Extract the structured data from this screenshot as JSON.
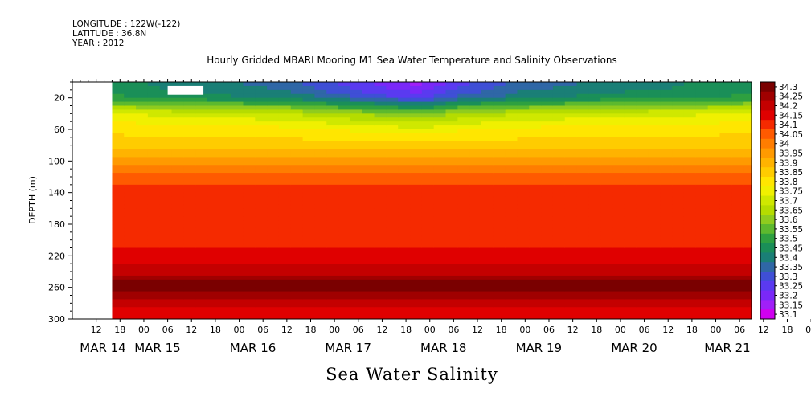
{
  "header": {
    "longitude": "LONGITUDE : 122W(-122)",
    "latitude": "LATITUDE : 36.8N",
    "year": "YEAR : 2012"
  },
  "chart_data": {
    "type": "heatmap",
    "title": "Hourly Gridded MBARI Mooring M1 Sea Water Temperature and Salinity Observations",
    "xlabel": "Sea Water Salinity",
    "ylabel": "DEPTH (m)",
    "ylim": [
      300,
      0
    ],
    "y_ticks": [
      20,
      60,
      100,
      140,
      180,
      220,
      260,
      300
    ],
    "x_hour_ticks": [
      "12",
      "18",
      "00",
      "06",
      "12",
      "18",
      "00",
      "06",
      "12",
      "18",
      "00",
      "06",
      "12",
      "18",
      "00",
      "06",
      "12",
      "18",
      "00",
      "06",
      "12",
      "18",
      "00",
      "06",
      "12",
      "18",
      "00",
      "06",
      "12",
      "18",
      "00",
      "06"
    ],
    "x_date_labels": [
      "MAR 14",
      "MAR 15",
      "MAR 16",
      "MAR 17",
      "MAR 18",
      "MAR 19",
      "MAR 20",
      "MAR 21"
    ],
    "x_range": [
      "2012-03-14 06:00",
      "2012-03-21 09:00"
    ],
    "data_start": "2012-03-14 16:00",
    "missing_data": [
      {
        "x": [
          "2012-03-14 06:00",
          "2012-03-14 16:00"
        ],
        "depth": [
          0,
          300
        ]
      },
      {
        "x": [
          "2012-03-15 06:00",
          "2012-03-15 15:00"
        ],
        "depth": [
          5,
          16
        ]
      }
    ],
    "colorbar": {
      "levels": [
        "34.3",
        "34.25",
        "34.2",
        "34.15",
        "34.1",
        "34.05",
        "34",
        "33.95",
        "33.9",
        "33.85",
        "33.8",
        "33.75",
        "33.7",
        "33.65",
        "33.6",
        "33.55",
        "33.5",
        "33.45",
        "33.4",
        "33.35",
        "33.3",
        "33.25",
        "33.2",
        "33.15",
        "33.1"
      ],
      "colors": [
        "#7a0000",
        "#a00000",
        "#c40000",
        "#e00000",
        "#f52a00",
        "#ff5a00",
        "#ff7d00",
        "#ff9a00",
        "#ffb300",
        "#ffcc00",
        "#ffe600",
        "#f0f000",
        "#cfe800",
        "#b5dc00",
        "#8fcc1e",
        "#5db92e",
        "#2ea040",
        "#1a8f58",
        "#1a7f76",
        "#2f67a6",
        "#3f4fd6",
        "#5a3af0",
        "#7a28f8",
        "#a020f8",
        "#d000f0"
      ]
    },
    "depth_profile": [
      {
        "depth": 5,
        "salinity": 33.4
      },
      {
        "depth": 20,
        "salinity": 33.45
      },
      {
        "depth": 40,
        "salinity": 33.7
      },
      {
        "depth": 60,
        "salinity": 33.8
      },
      {
        "depth": 80,
        "salinity": 33.85
      },
      {
        "depth": 100,
        "salinity": 33.95
      },
      {
        "depth": 120,
        "salinity": 34.05
      },
      {
        "depth": 140,
        "salinity": 34.1
      },
      {
        "depth": 160,
        "salinity": 34.1
      },
      {
        "depth": 200,
        "salinity": 34.1
      },
      {
        "depth": 220,
        "salinity": 34.15
      },
      {
        "depth": 240,
        "salinity": 34.2
      },
      {
        "depth": 255,
        "salinity": 34.3
      },
      {
        "depth": 270,
        "salinity": 34.25
      },
      {
        "depth": 290,
        "salinity": 34.15
      },
      {
        "depth": 300,
        "salinity": 34.15
      }
    ],
    "surface_freshening": [
      {
        "time": "2012-03-14 16:00",
        "salinity": 33.45
      },
      {
        "time": "2012-03-15 12:00",
        "salinity": 33.4
      },
      {
        "time": "2012-03-16 12:00",
        "salinity": 33.35
      },
      {
        "time": "2012-03-17 12:00",
        "salinity": 33.2
      },
      {
        "time": "2012-03-17 21:00",
        "salinity": 33.15
      },
      {
        "time": "2012-03-18 06:00",
        "salinity": 33.25
      },
      {
        "time": "2012-03-19 00:00",
        "salinity": 33.35
      },
      {
        "time": "2012-03-20 00:00",
        "salinity": 33.4
      },
      {
        "time": "2012-03-21 09:00",
        "salinity": 33.45
      }
    ]
  }
}
